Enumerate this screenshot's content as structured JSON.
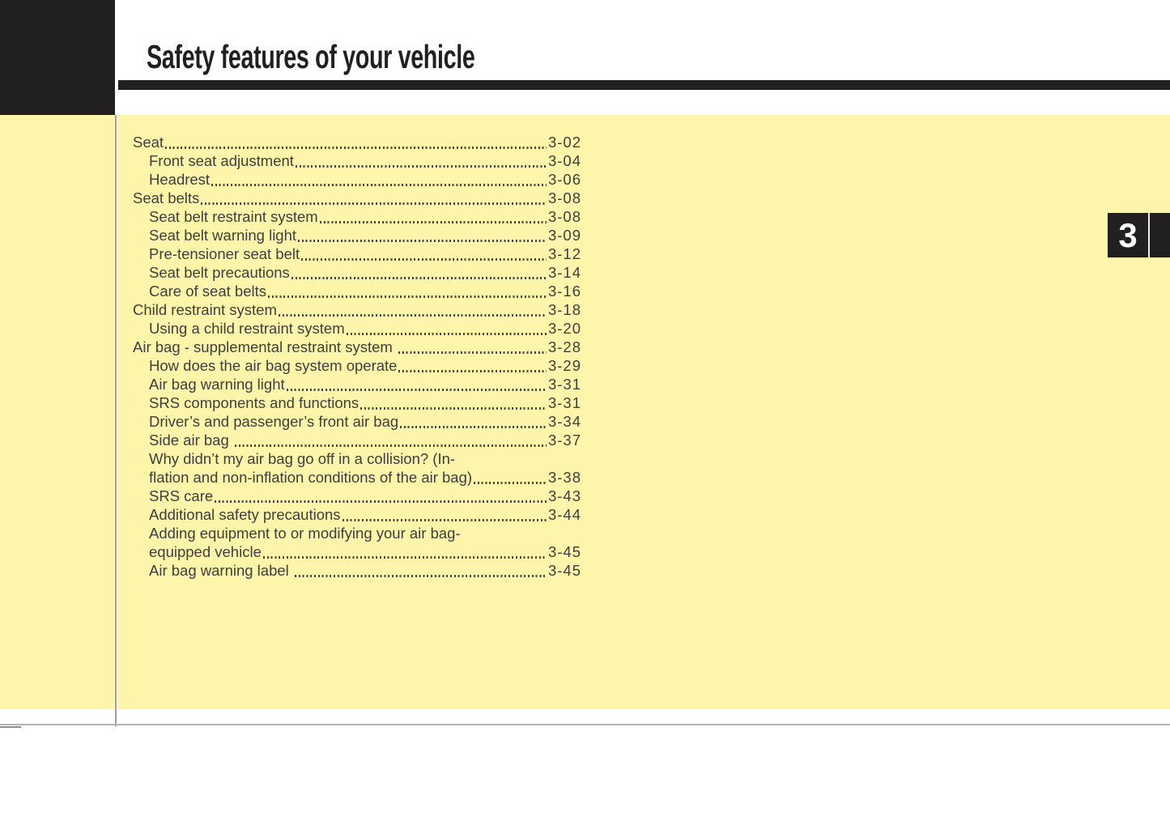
{
  "header": {
    "title": "Safety features of your vehicle"
  },
  "chapter_tab": {
    "number": "3"
  },
  "toc": {
    "entries": [
      {
        "label": "Seat",
        "page": "3-02",
        "level": 0
      },
      {
        "label": "Front seat adjustment",
        "page": "3-04",
        "level": 1
      },
      {
        "label": "Headrest",
        "page": "3-06",
        "level": 1
      },
      {
        "label": "Seat belts",
        "page": "3-08",
        "level": 0
      },
      {
        "label": "Seat belt restraint system",
        "page": "3-08",
        "level": 1
      },
      {
        "label": "Seat belt warning light",
        "page": "3-09",
        "level": 1
      },
      {
        "label": "Pre-tensioner seat belt",
        "page": "3-12",
        "level": 1
      },
      {
        "label": "Seat belt precautions",
        "page": "3-14",
        "level": 1
      },
      {
        "label": "Care of seat belts",
        "page": "3-16",
        "level": 1
      },
      {
        "label": "Child restraint system",
        "page": "3-18",
        "level": 0
      },
      {
        "label": "Using a child restraint system",
        "page": "3-20",
        "level": 1
      },
      {
        "label": "Air bag - supplemental restraint system ",
        "page": "3-28",
        "level": 0
      },
      {
        "label": "How does the air bag system operate",
        "page": "3-29",
        "level": 1
      },
      {
        "label": "Air bag warning light",
        "page": "3-31",
        "level": 1
      },
      {
        "label": "SRS components and functions",
        "page": "3-31",
        "level": 1
      },
      {
        "label": "Driver’s and passenger’s front air bag",
        "page": "3-34",
        "level": 1
      },
      {
        "label": "Side air bag ",
        "page": "3-37",
        "level": 1
      },
      {
        "label": "Why didn’t my air bag go off in a collision? (In-",
        "page": "",
        "level": 1
      },
      {
        "label": "flation and non-inflation conditions of the air bag)",
        "page": "3-38",
        "level": 1
      },
      {
        "label": "SRS care",
        "page": "3-43",
        "level": 1
      },
      {
        "label": "Additional safety precautions",
        "page": "3-44",
        "level": 1
      },
      {
        "label": "Adding equipment to or modifying your air bag-",
        "page": "",
        "level": 1
      },
      {
        "label": "equipped vehicle",
        "page": "3-45",
        "level": 1
      },
      {
        "label": "Air bag warning label ",
        "page": "3-45",
        "level": 1
      }
    ]
  },
  "colors": {
    "ink": "#221F20",
    "panel_yellow": "#FCF5AA",
    "toc_text": "#403E3E",
    "divider_gray": "#A4A096",
    "bottom_rule_gray": "#B3B3B3",
    "tab_number_text": "#FFFFFF"
  }
}
